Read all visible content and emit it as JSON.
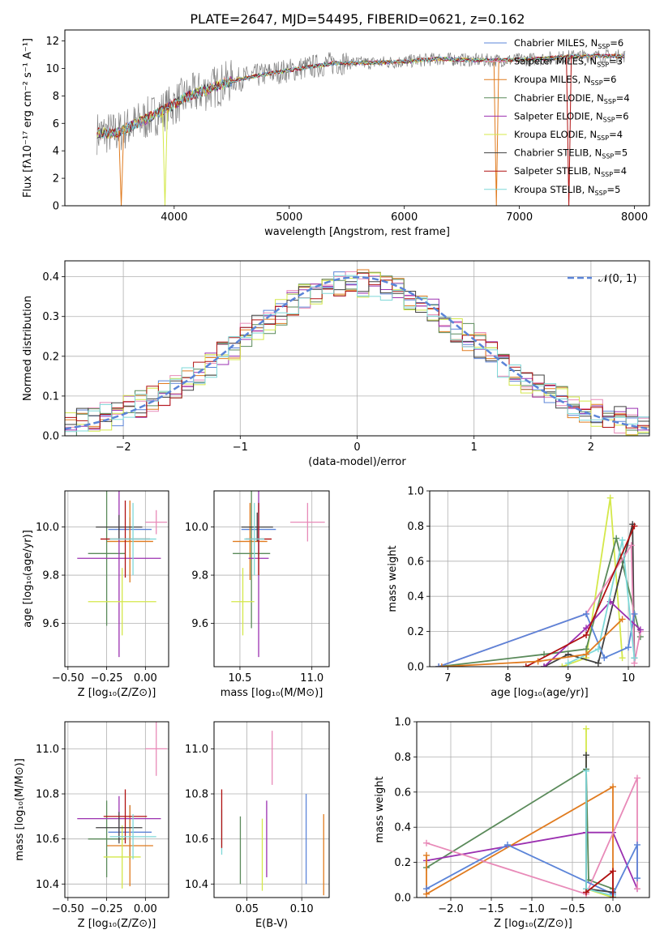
{
  "page_title": "PLATE=2647, MJD=54495, FIBERID=0621, z=0.162",
  "colors": {
    "Chabrier MILES": "#5b84d8",
    "Salpeter MILES": "#e88ab8",
    "Kroupa MILES": "#e07b1f",
    "Chabrier ELODIE": "#5a8a5a",
    "Salpeter ELODIE": "#9b30b0",
    "Kroupa ELODIE": "#d4e84a",
    "Chabrier STELIB": "#404040",
    "Salpeter STELIB": "#b01010",
    "Kroupa STELIB": "#7ed8d8",
    "data": "#808080",
    "normal": "#5b84d8"
  },
  "chart_data": [
    {
      "id": "spectrum",
      "type": "line",
      "title": "PLATE=2647, MJD=54495, FIBERID=0621, z=0.162",
      "xlabel": "wavelength [Angstrom, rest frame]",
      "ylabel": "Flux [fλ10⁻¹⁷ erg cm⁻² s⁻¹ A⁻¹]",
      "xlim": [
        3050,
        8130
      ],
      "ylim": [
        0,
        12.8
      ],
      "xticks": [
        "4000",
        "5000",
        "6000",
        "7000",
        "8000"
      ],
      "xtick_values": [
        4000,
        5000,
        6000,
        7000,
        8000
      ],
      "yticks": [
        "0",
        "2",
        "4",
        "6",
        "8",
        "10",
        "12"
      ],
      "ytick_values": [
        0,
        2,
        4,
        6,
        8,
        10,
        12
      ],
      "grid": false,
      "legend_position": "bottom-right",
      "legend": [
        {
          "label": "Chabrier MILES, N",
          "sub": "SSP",
          "suffix": "=6",
          "model": "Chabrier MILES"
        },
        {
          "label": "Salpeter MILES, N",
          "sub": "SSP",
          "suffix": "=3",
          "model": "Salpeter MILES"
        },
        {
          "label": "Kroupa MILES, N",
          "sub": "SSP",
          "suffix": "=6",
          "model": "Kroupa MILES"
        },
        {
          "label": "Chabrier ELODIE, N",
          "sub": "SSP",
          "suffix": "=4",
          "model": "Chabrier ELODIE"
        },
        {
          "label": "Salpeter ELODIE, N",
          "sub": "SSP",
          "suffix": "=6",
          "model": "Salpeter ELODIE"
        },
        {
          "label": "Kroupa ELODIE, N",
          "sub": "SSP",
          "suffix": "=4",
          "model": "Kroupa ELODIE"
        },
        {
          "label": "Chabrier STELIB, N",
          "sub": "SSP",
          "suffix": "=5",
          "model": "Chabrier STELIB"
        },
        {
          "label": "Salpeter STELIB, N",
          "sub": "SSP",
          "suffix": "=4",
          "model": "Salpeter STELIB"
        },
        {
          "label": "Kroupa STELIB, N",
          "sub": "SSP",
          "suffix": "=5",
          "model": "Kroupa STELIB"
        }
      ],
      "continuum": {
        "x": [
          3330,
          3500,
          3700,
          3900,
          4100,
          4300,
          4500,
          4800,
          5100,
          5400,
          5700,
          6000,
          6300,
          6600,
          6900,
          7200,
          7500,
          7900
        ],
        "y": [
          5.3,
          5.3,
          6.1,
          6.9,
          7.9,
          8.5,
          9.1,
          9.6,
          10.0,
          10.4,
          10.4,
          10.5,
          10.7,
          10.6,
          10.6,
          10.7,
          10.9,
          10.9
        ]
      },
      "dips": [
        {
          "model": "Kroupa MILES",
          "x": 3540
        },
        {
          "model": "Kroupa ELODIE",
          "x": 3920
        },
        {
          "model": "Kroupa MILES",
          "x": 6800
        },
        {
          "model": "Salpeter STELIB",
          "x": 7430
        }
      ]
    },
    {
      "id": "residuals",
      "type": "histogram",
      "xlabel": "(data-model)/error",
      "ylabel": "Normed distribution",
      "xlim": [
        -2.5,
        2.5
      ],
      "ylim": [
        0,
        0.44
      ],
      "xticks": [
        "−2",
        "−1",
        "0",
        "1",
        "2"
      ],
      "xtick_values": [
        -2,
        -1,
        0,
        1,
        2
      ],
      "yticks": [
        "0.0",
        "0.1",
        "0.2",
        "0.3",
        "0.4"
      ],
      "ytick_values": [
        0,
        0.1,
        0.2,
        0.3,
        0.4
      ],
      "grid": true,
      "bin_width": 0.1,
      "legend_position": "top-right",
      "legend": [
        {
          "label": "𝒩(0, 1)",
          "model": "normal"
        }
      ]
    },
    {
      "id": "age-vs-Z",
      "type": "scatter",
      "xlabel": "Z [log₁₀(Z/Z⊙)]",
      "ylabel": "age  [log₁₀(age/yr)]",
      "xlim": [
        -0.52,
        0.15
      ],
      "ylim": [
        9.42,
        10.15
      ],
      "xticks": [
        "−0.50",
        "−0.25",
        "0.00"
      ],
      "xtick_values": [
        -0.5,
        -0.25,
        0
      ],
      "yticks": [
        "9.6",
        "9.8",
        "10.0"
      ],
      "ytick_values": [
        9.6,
        9.8,
        10.0
      ],
      "grid": true,
      "points": [
        {
          "model": "Chabrier MILES",
          "x": -0.1,
          "y": 9.99,
          "xerr": 0.14,
          "yerr": 0.05
        },
        {
          "model": "Salpeter MILES",
          "x": 0.07,
          "y": 10.02,
          "xerr": 0.07,
          "yerr": 0.05
        },
        {
          "model": "Kroupa MILES",
          "x": -0.1,
          "y": 9.94,
          "xerr": 0.15,
          "yerr": 0.17
        },
        {
          "model": "Chabrier ELODIE",
          "x": -0.25,
          "y": 9.89,
          "xerr": 0.12,
          "yerr": 0.3
        },
        {
          "model": "Salpeter ELODIE",
          "x": -0.17,
          "y": 9.87,
          "xerr": 0.27,
          "yerr": 0.41
        },
        {
          "model": "Kroupa ELODIE",
          "x": -0.15,
          "y": 9.69,
          "xerr": 0.22,
          "yerr": 0.14
        },
        {
          "model": "Chabrier STELIB",
          "x": -0.17,
          "y": 10.0,
          "xerr": 0.15,
          "yerr": 0.05
        },
        {
          "model": "Salpeter STELIB",
          "x": -0.13,
          "y": 9.95,
          "xerr": 0.16,
          "yerr": 0.16
        },
        {
          "model": "Kroupa STELIB",
          "x": -0.08,
          "y": 9.95,
          "xerr": 0.15,
          "yerr": 0.15
        }
      ]
    },
    {
      "id": "age-vs-mass",
      "type": "scatter",
      "xlabel": "mass [log₁₀(M/M⊙)]",
      "ylabel": "",
      "xlim": [
        10.32,
        11.12
      ],
      "ylim": [
        9.42,
        10.15
      ],
      "xticks": [
        "10.5",
        "11.0"
      ],
      "xtick_values": [
        10.5,
        11.0
      ],
      "yticks": [
        "9.6",
        "9.8",
        "10.0"
      ],
      "ytick_values": [
        9.6,
        9.8,
        10.0
      ],
      "grid": true,
      "points": [
        {
          "model": "Chabrier MILES",
          "x": 10.63,
          "y": 9.99,
          "xerr": 0.12,
          "yerr": 0.11
        },
        {
          "model": "Salpeter MILES",
          "x": 10.97,
          "y": 10.02,
          "xerr": 0.12,
          "yerr": 0.08
        },
        {
          "model": "Kroupa MILES",
          "x": 10.57,
          "y": 9.94,
          "xerr": 0.12,
          "yerr": 0.16
        },
        {
          "model": "Chabrier ELODIE",
          "x": 10.58,
          "y": 9.89,
          "xerr": 0.13,
          "yerr": 0.31
        },
        {
          "model": "Salpeter ELODIE",
          "x": 10.63,
          "y": 9.87,
          "xerr": 0.07,
          "yerr": 0.41
        },
        {
          "model": "Kroupa ELODIE",
          "x": 10.52,
          "y": 9.69,
          "xerr": 0.08,
          "yerr": 0.14
        },
        {
          "model": "Chabrier STELIB",
          "x": 10.62,
          "y": 10.0,
          "xerr": 0.11,
          "yerr": 0.06
        },
        {
          "model": "Salpeter STELIB",
          "x": 10.63,
          "y": 9.95,
          "xerr": 0.09,
          "yerr": 0.15
        },
        {
          "model": "Kroupa STELIB",
          "x": 10.6,
          "y": 9.95,
          "xerr": 0.07,
          "yerr": 0.15
        }
      ]
    },
    {
      "id": "massweight-vs-age",
      "type": "line",
      "xlabel": "age  [log₁₀(age/yr)]",
      "ylabel": "mass weight",
      "xlim": [
        6.7,
        10.35
      ],
      "ylim": [
        0,
        1.0
      ],
      "xticks": [
        "7",
        "8",
        "9",
        "10"
      ],
      "xtick_values": [
        7,
        8,
        9,
        10
      ],
      "yticks": [
        "0.0",
        "0.2",
        "0.4",
        "0.6",
        "0.8",
        "1.0"
      ],
      "ytick_values": [
        0,
        0.2,
        0.4,
        0.6,
        0.8,
        1.0
      ],
      "grid": true,
      "series": [
        {
          "model": "Kroupa ELODIE",
          "x": [
            8.9,
            9.3,
            9.7,
            9.9
          ],
          "y": [
            0.0,
            0.05,
            0.96,
            0.05
          ]
        },
        {
          "model": "Chabrier STELIB",
          "x": [
            8.6,
            9.0,
            9.5,
            10.07,
            10.1
          ],
          "y": [
            0.0,
            0.07,
            0.02,
            0.81,
            0.05
          ]
        },
        {
          "model": "Chabrier ELODIE",
          "x": [
            6.85,
            8.6,
            9.3,
            9.8,
            10.2
          ],
          "y": [
            0.0,
            0.07,
            0.1,
            0.73,
            0.17
          ]
        },
        {
          "model": "Salpeter MILES",
          "x": [
            6.85,
            9.3,
            10.05,
            10.1,
            10.2
          ],
          "y": [
            0.0,
            0.3,
            0.69,
            0.02,
            0.2
          ]
        },
        {
          "model": "Chabrier MILES",
          "x": [
            6.85,
            9.3,
            9.6,
            10.0,
            10.1
          ],
          "y": [
            0.0,
            0.3,
            0.05,
            0.11,
            0.3
          ]
        },
        {
          "model": "Salpeter ELODIE",
          "x": [
            8.6,
            9.3,
            9.7,
            10.2
          ],
          "y": [
            0.0,
            0.22,
            0.37,
            0.21
          ]
        },
        {
          "model": "Kroupa STELIB",
          "x": [
            9.0,
            9.5,
            9.9,
            10.1
          ],
          "y": [
            0.02,
            0.1,
            0.72,
            0.05
          ]
        },
        {
          "model": "Salpeter STELIB",
          "x": [
            8.3,
            9.3,
            10.1
          ],
          "y": [
            0.0,
            0.18,
            0.8
          ]
        },
        {
          "model": "Kroupa MILES",
          "x": [
            6.9,
            8.5,
            9.3,
            9.9
          ],
          "y": [
            0.0,
            0.03,
            0.07,
            0.27
          ]
        }
      ]
    },
    {
      "id": "mass-vs-Z",
      "type": "scatter",
      "xlabel": "Z [log₁₀(Z/Z⊙)]",
      "ylabel": "mass [log₁₀(M/M⊙)]",
      "xlim": [
        -0.52,
        0.15
      ],
      "ylim": [
        10.34,
        11.12
      ],
      "xticks": [
        "−0.50",
        "−0.25",
        "0.00"
      ],
      "xtick_values": [
        -0.5,
        -0.25,
        0
      ],
      "yticks": [
        "10.4",
        "10.6",
        "10.8",
        "11.0"
      ],
      "ytick_values": [
        10.4,
        10.6,
        10.8,
        11.0
      ],
      "grid": true,
      "points": [
        {
          "model": "Chabrier MILES",
          "x": -0.1,
          "y": 10.63,
          "xerr": 0.14,
          "yerr": 0.12
        },
        {
          "model": "Salpeter MILES",
          "x": 0.07,
          "y": 11.0,
          "xerr": 0.07,
          "yerr": 0.12
        },
        {
          "model": "Kroupa MILES",
          "x": -0.1,
          "y": 10.57,
          "xerr": 0.15,
          "yerr": 0.18
        },
        {
          "model": "Chabrier ELODIE",
          "x": -0.25,
          "y": 10.6,
          "xerr": 0.12,
          "yerr": 0.17
        },
        {
          "model": "Salpeter ELODIE",
          "x": -0.17,
          "y": 10.69,
          "xerr": 0.27,
          "yerr": 0.1
        },
        {
          "model": "Kroupa ELODIE",
          "x": -0.15,
          "y": 10.52,
          "xerr": 0.12,
          "yerr": 0.14
        },
        {
          "model": "Chabrier STELIB",
          "x": -0.17,
          "y": 10.65,
          "xerr": 0.15,
          "yerr": 0.07
        },
        {
          "model": "Salpeter STELIB",
          "x": -0.13,
          "y": 10.7,
          "xerr": 0.14,
          "yerr": 0.12
        },
        {
          "model": "Kroupa STELIB",
          "x": -0.08,
          "y": 10.61,
          "xerr": 0.15,
          "yerr": 0.1
        }
      ]
    },
    {
      "id": "mass-vs-ebv",
      "type": "scatter",
      "xlabel": "E(B-V)",
      "ylabel": "",
      "xlim": [
        0.02,
        0.125
      ],
      "ylim": [
        10.34,
        11.12
      ],
      "xticks": [
        "0.05",
        "0.10"
      ],
      "xtick_values": [
        0.05,
        0.1
      ],
      "yticks": [
        "10.4",
        "10.6",
        "10.8",
        "11.0"
      ],
      "ytick_values": [
        10.4,
        10.6,
        10.8,
        11.0
      ],
      "grid": true,
      "points": [
        {
          "model": "Kroupa STELIB",
          "x": 0.027,
          "y": 10.63,
          "xerr": 0,
          "yerr": 0.1
        },
        {
          "model": "Salpeter STELIB",
          "x": 0.027,
          "y": 10.69,
          "xerr": 0,
          "yerr": 0.13
        },
        {
          "model": "Chabrier ELODIE",
          "x": 0.044,
          "y": 10.55,
          "xerr": 0,
          "yerr": 0.15
        },
        {
          "model": "Kroupa ELODIE",
          "x": 0.064,
          "y": 10.53,
          "xerr": 0,
          "yerr": 0.16
        },
        {
          "model": "Salpeter ELODIE",
          "x": 0.068,
          "y": 10.6,
          "xerr": 0,
          "yerr": 0.17
        },
        {
          "model": "Salpeter MILES",
          "x": 0.073,
          "y": 10.96,
          "xerr": 0,
          "yerr": 0.12
        },
        {
          "model": "Chabrier MILES",
          "x": 0.104,
          "y": 10.6,
          "xerr": 0,
          "yerr": 0.2
        },
        {
          "model": "Kroupa MILES",
          "x": 0.12,
          "y": 10.53,
          "xerr": 0,
          "yerr": 0.18
        }
      ]
    },
    {
      "id": "massweight-vs-Z",
      "type": "line",
      "xlabel": "Z [log₁₀(Z/Z⊙)]",
      "ylabel": "mass weight",
      "xlim": [
        -2.42,
        0.45
      ],
      "ylim": [
        0,
        1.0
      ],
      "xticks": [
        "−2.0",
        "−1.5",
        "−1.0",
        "−0.5",
        "0.0"
      ],
      "xtick_values": [
        -2.0,
        -1.5,
        -1.0,
        -0.5,
        0.0
      ],
      "yticks": [
        "0.0",
        "0.2",
        "0.4",
        "0.6",
        "0.8",
        "1.0"
      ],
      "ytick_values": [
        0,
        0.2,
        0.4,
        0.6,
        0.8,
        1.0
      ],
      "grid": true,
      "series": [
        {
          "model": "Kroupa ELODIE",
          "x": [
            -0.33,
            -0.33,
            0.0
          ],
          "y": [
            0.96,
            0.05,
            0.0
          ]
        },
        {
          "model": "Chabrier ELODIE",
          "x": [
            -2.3,
            -0.33,
            -0.3,
            0.0
          ],
          "y": [
            0.17,
            0.73,
            0.1,
            0.05
          ]
        },
        {
          "model": "Salpeter ELODIE",
          "x": [
            -2.3,
            -0.33,
            0.0,
            0.3
          ],
          "y": [
            0.21,
            0.37,
            0.37,
            0.05
          ]
        },
        {
          "model": "Kroupa MILES",
          "x": [
            -2.3,
            -2.3,
            0.0,
            0.0
          ],
          "y": [
            0.24,
            0.02,
            0.63,
            0.0
          ]
        },
        {
          "model": "Salpeter MILES",
          "x": [
            -2.3,
            -0.33,
            0.3,
            0.3
          ],
          "y": [
            0.31,
            0.02,
            0.68,
            0.05
          ]
        },
        {
          "model": "Chabrier MILES",
          "x": [
            -2.3,
            -1.3,
            0.0,
            0.3,
            0.3
          ],
          "y": [
            0.05,
            0.3,
            0.02,
            0.3,
            0.11
          ]
        },
        {
          "model": "Chabrier STELIB",
          "x": [
            -0.33,
            -0.33,
            0.0
          ],
          "y": [
            0.81,
            0.05,
            0.03
          ]
        },
        {
          "model": "Kroupa STELIB",
          "x": [
            -0.33,
            -0.33,
            0.0
          ],
          "y": [
            0.72,
            0.05,
            0.01
          ]
        },
        {
          "model": "Salpeter STELIB",
          "x": [
            -0.33,
            0.0,
            0.0
          ],
          "y": [
            0.03,
            0.15,
            0.0
          ]
        }
      ]
    }
  ]
}
